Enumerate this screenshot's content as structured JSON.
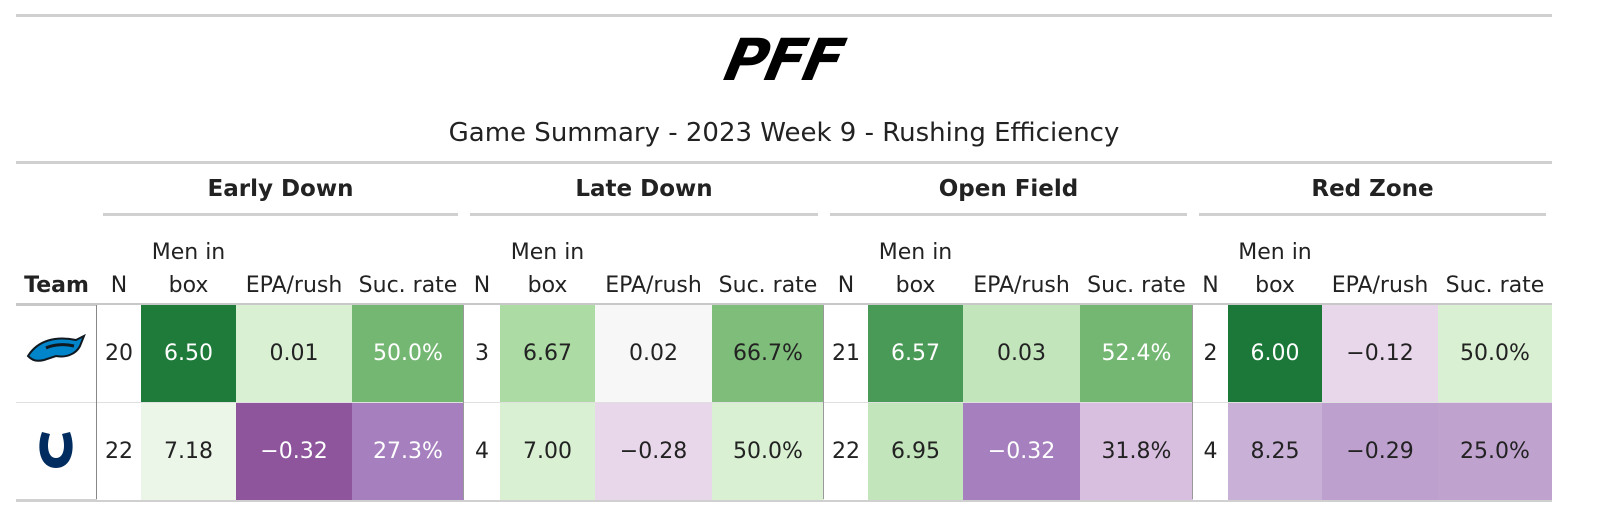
{
  "header": {
    "logo": "PFF",
    "title": "Game Summary - 2023 Week 9 - Rushing Efficiency"
  },
  "table": {
    "team_header": "Team",
    "groups": [
      "Early Down",
      "Late Down",
      "Open Field",
      "Red Zone"
    ],
    "columns": [
      "N",
      "Men in box",
      "EPA/rush",
      "Suc. rate",
      "N",
      "Men in box",
      "EPA/rush",
      "Suc. rate",
      "N",
      "Men in box",
      "EPA/rush",
      "Suc. rate",
      "N",
      "Men in box",
      "EPA/rush",
      "Suc. rate"
    ],
    "rows": [
      {
        "cells": [
          "20",
          "6.50",
          "0.01",
          "50.0%",
          "3",
          "6.67",
          "0.02",
          "66.7%",
          "21",
          "6.57",
          "0.03",
          "52.4%",
          "2",
          "6.00",
          "−0.12",
          "50.0%"
        ],
        "colors": [
          "#ffffff",
          "#1e7b3a",
          "#d9f0d3",
          "#74b772",
          "#ffffff",
          "#acdba4",
          "#f7f7f7",
          "#7fbd7b",
          "#ffffff",
          "#4a9a57",
          "#c2e5bb",
          "#74b772",
          "#ffffff",
          "#1b7838",
          "#e8d6ea",
          "#d9f0d3"
        ]
      },
      {
        "cells": [
          "22",
          "7.18",
          "−0.32",
          "27.3%",
          "4",
          "7.00",
          "−0.28",
          "50.0%",
          "22",
          "6.95",
          "−0.32",
          "31.8%",
          "4",
          "8.25",
          "−0.29",
          "25.0%"
        ],
        "colors": [
          "#ffffff",
          "#ebf5e8",
          "#8e559d",
          "#a67fbe",
          "#ffffff",
          "#d9f0d3",
          "#e8d6ea",
          "#d9f0d3",
          "#ffffff",
          "#c2e5bb",
          "#a67fbe",
          "#d8bfdf",
          "#ffffff",
          "#c9b0d7",
          "#bea0cf",
          "#c0a2cf"
        ]
      }
    ]
  }
}
